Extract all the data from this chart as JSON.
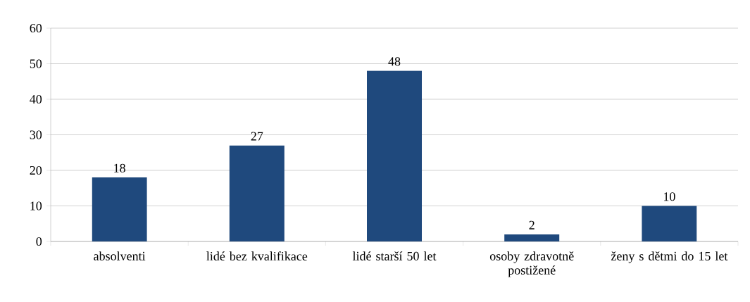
{
  "chart_data": {
    "type": "bar",
    "categories": [
      "absolventi",
      "lidé bez kvalifikace",
      "lidé starší 50 let",
      "osoby zdravotně postižené",
      "ženy s dětmi do 15 let"
    ],
    "values": [
      18,
      27,
      48,
      2,
      10
    ],
    "color": "#1f497d",
    "ylim": [
      0,
      60
    ],
    "yticks": [
      0,
      10,
      20,
      30,
      40,
      50,
      60
    ],
    "grid": "y",
    "data_labels": true
  }
}
